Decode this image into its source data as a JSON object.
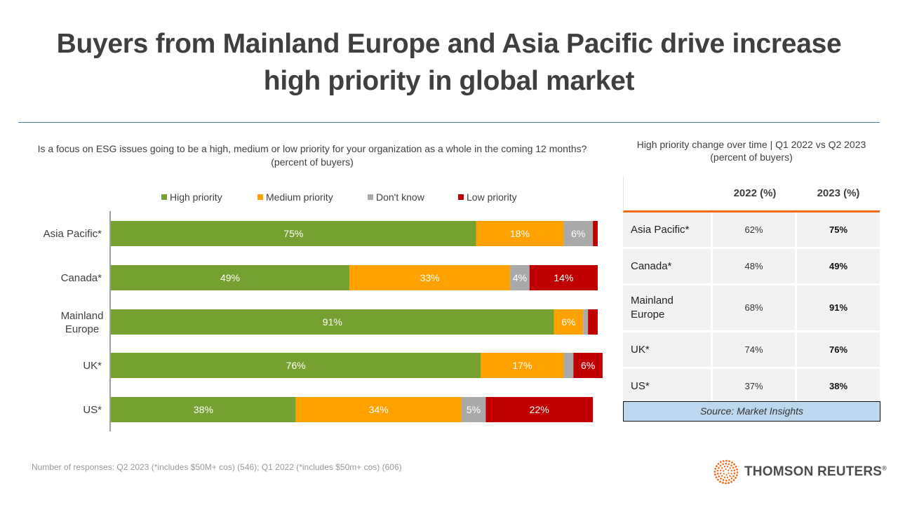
{
  "page": {
    "title_line1": "Buyers from Mainland Europe and Asia Pacific drive increase",
    "title_line2": "high priority in global market",
    "question": "Is a focus on ESG issues going to be a high, medium or low priority for your organization as a whole in the coming 12 months? (percent of buyers)",
    "footnote": "Number of responses: Q2 2023 (*includes $50M+ cos) (546); Q1 2022 (*includes $50m+ cos) (606)",
    "logo_text": "THOMSON REUTERS",
    "logo_reg": "®"
  },
  "colors": {
    "high": "#76a131",
    "medium": "#ffa200",
    "dont_know": "#a9a9a9",
    "low": "#c00000",
    "accent": "#f26a1b"
  },
  "chart_data": {
    "type": "bar",
    "orientation": "horizontal",
    "stacked": true,
    "title": "Is a focus on ESG issues going to be a high, medium or low priority for your organization as a whole in the coming 12 months? (percent of buyers)",
    "categories": [
      "Asia Pacific*",
      "Canada*",
      "Mainland Europe",
      "UK*",
      "US*"
    ],
    "xlim": [
      0,
      100
    ],
    "legend_position": "top",
    "series": [
      {
        "key": "high",
        "name": "High priority",
        "values": [
          75,
          49,
          91,
          76,
          38
        ],
        "labels": [
          "75%",
          "49%",
          "91%",
          "76%",
          "38%"
        ]
      },
      {
        "key": "medium",
        "name": "Medium priority",
        "values": [
          18,
          33,
          6,
          17,
          34
        ],
        "labels": [
          "18%",
          "33%",
          "6%",
          "17%",
          "34%"
        ]
      },
      {
        "key": "dont_know",
        "name": "Don't know",
        "values": [
          6,
          4,
          1,
          2,
          5
        ],
        "labels": [
          "6%",
          "4%",
          "",
          "",
          "5%"
        ]
      },
      {
        "key": "low",
        "name": "Low priority",
        "values": [
          1,
          14,
          2,
          6,
          22
        ],
        "labels": [
          "",
          "14%",
          "",
          "6%",
          "22%"
        ]
      }
    ]
  },
  "table": {
    "title_line1": "High priority change over time | Q1 2022 vs Q2 2023",
    "title_line2": "(percent of buyers)",
    "headers": [
      "",
      "2022 (%)",
      "2023 (%)"
    ],
    "rows": [
      {
        "label": "Asia Pacific*",
        "v2022": "62%",
        "v2023": "75%"
      },
      {
        "label": "Canada*",
        "v2022": "48%",
        "v2023": "49%"
      },
      {
        "label": "Mainland Europe",
        "v2022": "68%",
        "v2023": "91%"
      },
      {
        "label": "UK*",
        "v2022": "74%",
        "v2023": "76%"
      },
      {
        "label": "US*",
        "v2022": "37%",
        "v2023": "38%"
      }
    ],
    "source": "Source: Market Insights"
  }
}
